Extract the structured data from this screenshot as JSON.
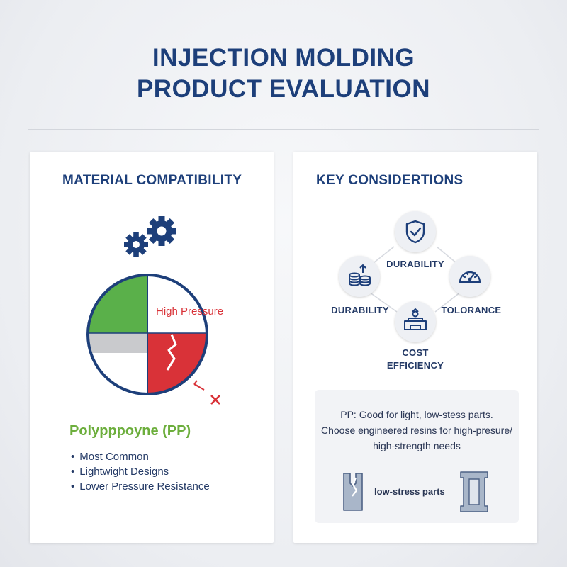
{
  "title": {
    "line1": "INJECTION MOLDING",
    "line2": "PRODUCT EVALUATION"
  },
  "material_compatibility": {
    "heading": "MATERIAL COMPATIBILITY",
    "icon": "gears-icon",
    "pie_label": "High Pressure",
    "material_name": "Polypppoyne (PP)",
    "bullets": [
      "Most Common",
      "Lightwight Designs",
      "Lower Pressure Resistance"
    ],
    "colors": {
      "green": "#5ab04a",
      "gray": "#c9cacd",
      "red": "#d93238",
      "ring": "#1d3f7a",
      "white": "#ffffff"
    }
  },
  "key_considerations": {
    "heading": "KEY CONSIDERTIONS",
    "nodes": [
      {
        "label": "DURABILITY",
        "icon": "shield-check-icon"
      },
      {
        "label": "DURABILITY",
        "icon": "coin-stack-icon"
      },
      {
        "label": "TOLORANCE",
        "icon": "gauge-icon"
      },
      {
        "label": "COST",
        "label2": "EFFICIENCY",
        "icon": "press-mold-icon"
      }
    ],
    "note": {
      "line1": "PP: Good for light, low-stess parts.",
      "line2": "Choose engineered resins for high-presure/",
      "line3": "high-strength needs"
    },
    "parts": {
      "label": "low-stress parts",
      "left_icon": "cracked-part-icon",
      "right_icon": "solid-part-icon"
    }
  }
}
